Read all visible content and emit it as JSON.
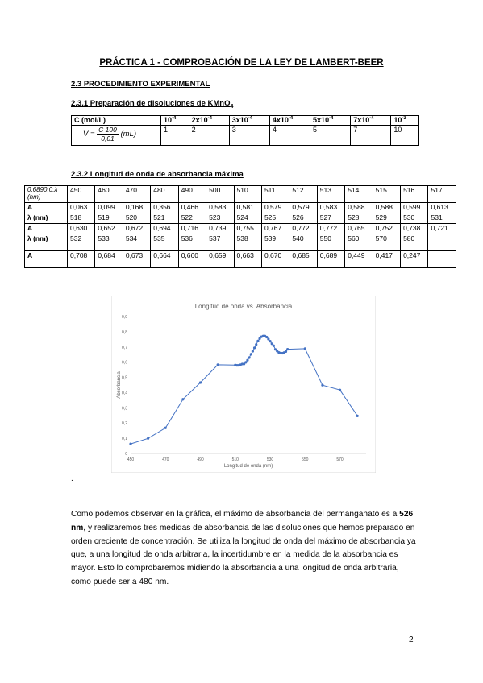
{
  "title": "PRÁCTICA 1 - COMPROBACIÓN DE LA LEY DE LAMBERT-BEER",
  "section_2_3": "2.3 PROCEDIMIENTO EXPERIMENTAL",
  "section_2_3_1_num": "2.3.1",
  "section_2_3_1_text": "Preparación de disoluciones de KMnO",
  "section_2_3_1_sub": "4",
  "conc_table": {
    "header_label": "C (mol/L)",
    "headers": [
      "10",
      "2x10",
      "3x10",
      "4x10",
      "5x10",
      "7x10",
      "10"
    ],
    "header_exps": [
      "-4",
      "-4",
      "-4",
      "-4",
      "-4",
      "-4",
      "-3"
    ],
    "formula_lhs": "V =",
    "formula_num": "C 100",
    "formula_den": "0,01",
    "formula_rhs": "(mL)",
    "volumes": [
      "1",
      "2",
      "3",
      "4",
      "5",
      "7",
      "10"
    ]
  },
  "section_2_3_2_num": "2.3.2",
  "section_2_3_2_text": "Longitud de onda de absorbancia máxima",
  "abs_table": {
    "corner_label": "0,6890,0,λ (nm)",
    "row1": [
      "450",
      "460",
      "470",
      "480",
      "490",
      "500",
      "510",
      "511",
      "512",
      "513",
      "514",
      "515",
      "516",
      "517"
    ],
    "row2_label": "A",
    "row2": [
      "0,063",
      "0,099",
      "0,168",
      "0,356",
      "0,466",
      "0,583",
      "0,581",
      "0,579",
      "0,579",
      "0,583",
      "0,588",
      "0,588",
      "0,599",
      "0,613"
    ],
    "row3_label": "λ (nm)",
    "row3": [
      "518",
      "519",
      "520",
      "521",
      "522",
      "523",
      "524",
      "525",
      "526",
      "527",
      "528",
      "529",
      "530",
      "531"
    ],
    "row4_label": "A",
    "row4": [
      "0,630",
      "0,652",
      "0,672",
      "0,694",
      "0,716",
      "0,739",
      "0,755",
      "0,767",
      "0,772",
      "0,772",
      "0,765",
      "0,752",
      "0,738",
      "0,721"
    ],
    "row5_label": "λ (nm)",
    "row5": [
      "532",
      "533",
      "534",
      "535",
      "536",
      "537",
      "538",
      "539",
      "540",
      "550",
      "560",
      "570",
      "580",
      ""
    ],
    "row6_label": "A",
    "row6": [
      "0,708",
      "0,684",
      "0,673",
      "0,664",
      "0,660",
      "0,659",
      "0,663",
      "0,670",
      "0,685",
      "0,689",
      "0,449",
      "0,417",
      "0,247",
      ""
    ]
  },
  "chart_data": {
    "type": "line",
    "title": "Longitud de onda vs. Absorbancia",
    "xlabel": "Longitud de onda (nm)",
    "ylabel": "Absorbancia",
    "xlim": [
      450,
      585
    ],
    "ylim": [
      0,
      0.9
    ],
    "x_ticks": [
      "450",
      "470",
      "490",
      "510",
      "530",
      "550",
      "570"
    ],
    "y_ticks": [
      "0",
      "0,1",
      "0,2",
      "0,3",
      "0,4",
      "0,5",
      "0,6",
      "0,7",
      "0,8",
      "0,9"
    ],
    "grid": false,
    "legend": "none",
    "color": "#4472c4",
    "x": [
      450,
      460,
      470,
      480,
      490,
      500,
      510,
      511,
      512,
      513,
      514,
      515,
      516,
      517,
      518,
      519,
      520,
      521,
      522,
      523,
      524,
      525,
      526,
      527,
      528,
      529,
      530,
      531,
      532,
      533,
      534,
      535,
      536,
      537,
      538,
      539,
      540,
      550,
      560,
      570,
      580
    ],
    "y": [
      0.063,
      0.099,
      0.168,
      0.356,
      0.466,
      0.583,
      0.581,
      0.579,
      0.579,
      0.583,
      0.588,
      0.588,
      0.599,
      0.613,
      0.63,
      0.652,
      0.672,
      0.694,
      0.716,
      0.739,
      0.755,
      0.767,
      0.772,
      0.772,
      0.765,
      0.752,
      0.738,
      0.721,
      0.708,
      0.684,
      0.673,
      0.664,
      0.66,
      0.659,
      0.663,
      0.67,
      0.685,
      0.689,
      0.449,
      0.417,
      0.247
    ]
  },
  "dot": ".",
  "para": {
    "p1": "Como podemos observar en la gráfica, el máximo de absorbancia del permanganato es a ",
    "p1b": "526 nm",
    "p2": ", y realizaremos tres medidas de absorbancia de las disoluciones que hemos preparado en orden creciente de concentración. Se utiliza la longitud de onda del máximo de absorbancia ya que, a una longitud de onda arbitraria, la incertidumbre en la medida de la absorbancia es mayor. Esto lo comprobaremos midiendo la absorbancia a una longitud de onda arbitraria, como puede ser a 480 nm."
  },
  "page_number": "2"
}
